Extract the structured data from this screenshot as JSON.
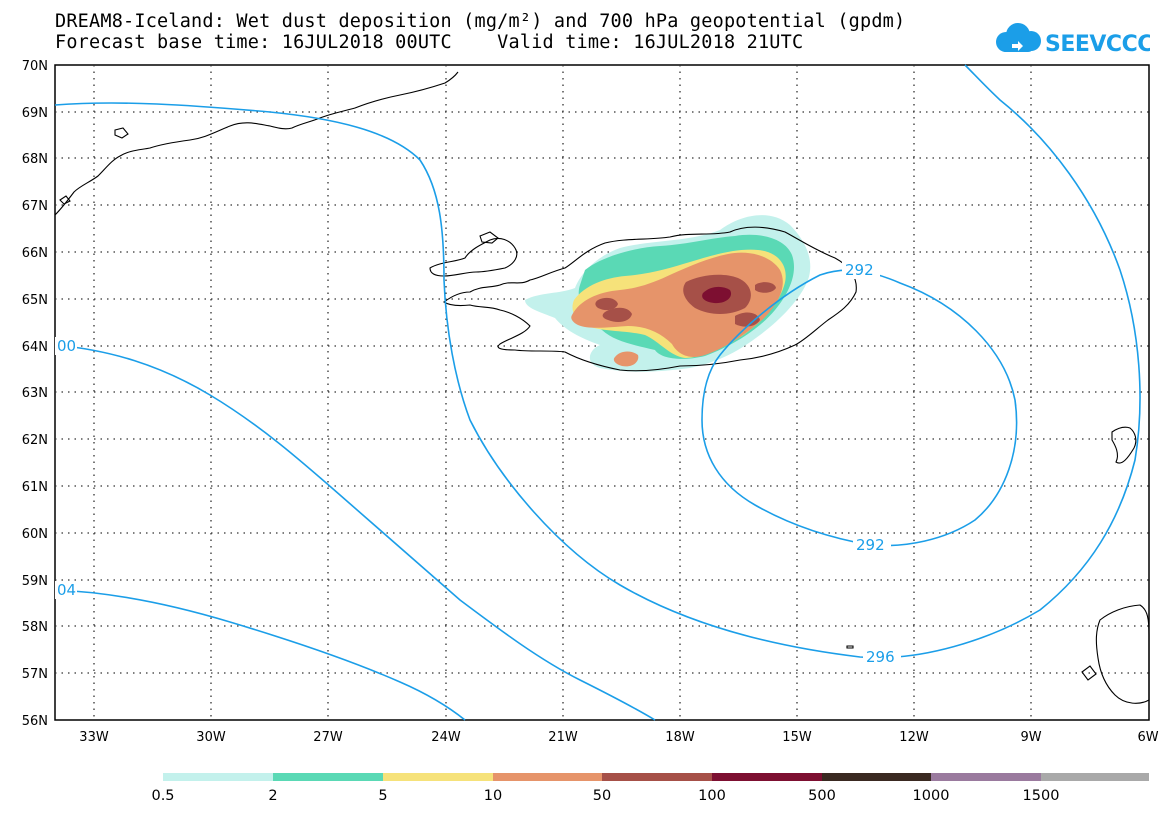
{
  "title": {
    "line1": "DREAM8-Iceland: Wet dust deposition (mg/m²) and 700 hPa geopotential (gpdm)",
    "line2": "Forecast base time: 16JUL2018 00UTC    Valid time: 16JUL2018 21UTC"
  },
  "logo": {
    "text": "SEEVCCC",
    "icon": "cloud-icon",
    "color": "#1b9ee8"
  },
  "axes": {
    "lat_labels": [
      "70N",
      "69N",
      "68N",
      "67N",
      "66N",
      "65N",
      "64N",
      "63N",
      "62N",
      "61N",
      "60N",
      "59N",
      "58N",
      "57N",
      "56N"
    ],
    "lon_labels": [
      "33W",
      "30W",
      "27W",
      "24W",
      "21W",
      "18W",
      "15W",
      "12W",
      "9W",
      "6W"
    ]
  },
  "contours": [
    {
      "label": "292"
    },
    {
      "label": "292"
    },
    {
      "label": "296"
    },
    {
      "label": "00"
    },
    {
      "label": "04"
    }
  ],
  "colorbar": {
    "colors": [
      "#c3f1ec",
      "#5ad9b5",
      "#f6e27a",
      "#e6946a",
      "#a65048",
      "#7d0f31",
      "#3a2921",
      "#9a7a9e",
      "#a9a9a9"
    ],
    "labels": [
      "0.5",
      "2",
      "5",
      "10",
      "50",
      "100",
      "500",
      "1000",
      "1500"
    ]
  },
  "colors": {
    "contour": "#1b9ee8",
    "grid": "#222222",
    "coast": "#000000"
  }
}
